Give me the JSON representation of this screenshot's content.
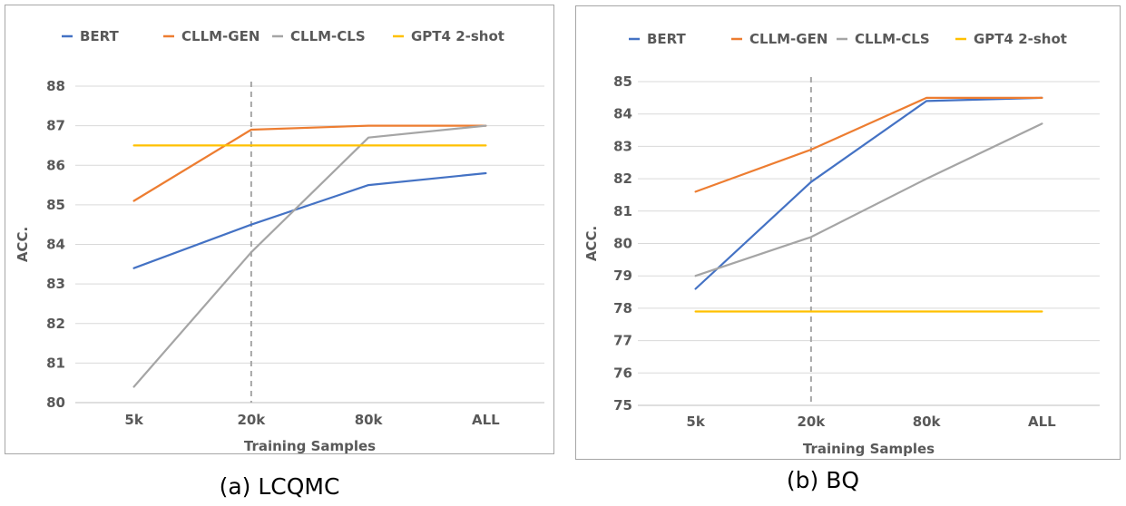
{
  "chart_data": [
    {
      "type": "line",
      "categories": [
        "5k",
        "20k",
        "80k",
        "ALL"
      ],
      "series": [
        {
          "name": "BERT",
          "color": "#4472C4",
          "values": [
            83.4,
            84.5,
            85.5,
            85.8
          ]
        },
        {
          "name": "CLLM-GEN",
          "color": "#ED7D31",
          "values": [
            85.1,
            86.9,
            87.0,
            87.0
          ]
        },
        {
          "name": "CLLM-CLS",
          "color": "#A5A5A5",
          "values": [
            80.4,
            83.8,
            86.7,
            87.0
          ]
        },
        {
          "name": "GPT4 2-shot",
          "color": "#FFC000",
          "values": [
            86.5,
            86.5,
            86.5,
            86.5
          ]
        }
      ],
      "xlabel": "Training Samples",
      "ylabel": "ACC.",
      "ylim": [
        80,
        88
      ],
      "yticks": [
        80,
        81,
        82,
        83,
        84,
        85,
        86,
        87,
        88
      ],
      "reference_category": "20k",
      "legend": "top",
      "grid": true,
      "caption": "(a) LCQMC"
    },
    {
      "type": "line",
      "categories": [
        "5k",
        "20k",
        "80k",
        "ALL"
      ],
      "series": [
        {
          "name": "BERT",
          "color": "#4472C4",
          "values": [
            78.6,
            81.9,
            84.4,
            84.5
          ]
        },
        {
          "name": "CLLM-GEN",
          "color": "#ED7D31",
          "values": [
            81.6,
            82.9,
            84.5,
            84.5
          ]
        },
        {
          "name": "CLLM-CLS",
          "color": "#A5A5A5",
          "values": [
            79.0,
            80.2,
            82.0,
            83.7
          ]
        },
        {
          "name": "GPT4 2-shot",
          "color": "#FFC000",
          "values": [
            77.9,
            77.9,
            77.9,
            77.9
          ]
        }
      ],
      "xlabel": "Training Samples",
      "ylabel": "ACC.",
      "ylim": [
        75,
        85
      ],
      "yticks": [
        75,
        76,
        77,
        78,
        79,
        80,
        81,
        82,
        83,
        84,
        85
      ],
      "reference_category": "20k",
      "legend": "top",
      "grid": true,
      "caption": "(b) BQ"
    }
  ]
}
